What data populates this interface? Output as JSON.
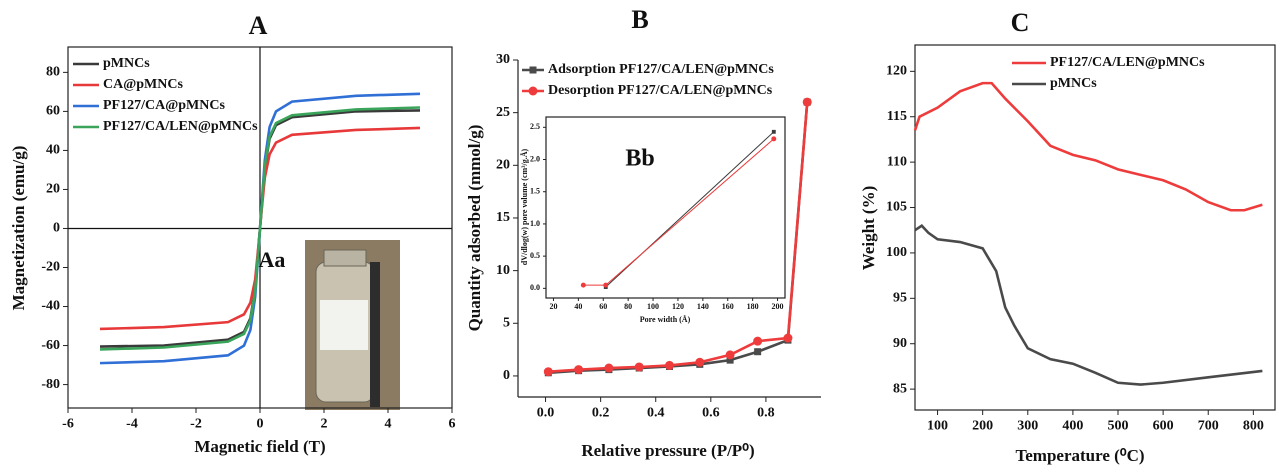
{
  "chart_data": [
    {
      "type": "line",
      "title": "A",
      "x_label": "Magnetic field (T)",
      "y_label": "Magnetization (emu/g)",
      "annotation": "Aa",
      "x": [
        -5,
        -3,
        -1,
        -0.5,
        -0.3,
        -0.15,
        -0.05,
        0,
        0.05,
        0.15,
        0.3,
        0.5,
        1,
        3,
        5
      ],
      "series": [
        {
          "name": "pMNCs",
          "color": "#3a3a3a",
          "values": [
            -60.5,
            -60,
            -57,
            -53,
            -46,
            -31,
            -10,
            0,
            10,
            31,
            46,
            53,
            57,
            60,
            60.5
          ]
        },
        {
          "name": "CA@pMNCs",
          "color": "#e8393a",
          "values": [
            -51.5,
            -50.5,
            -48,
            -44,
            -38,
            -26,
            -9,
            0,
            9,
            26,
            38,
            44,
            48,
            50.5,
            51.5
          ]
        },
        {
          "name": "PF127/CA@pMNCs",
          "color": "#2f6fd6",
          "values": [
            -69,
            -68,
            -65,
            -60,
            -52,
            -35,
            -12,
            0,
            12,
            35,
            52,
            60,
            65,
            68,
            69
          ]
        },
        {
          "name": "PF127/CA/LEN@pMNCs",
          "color": "#3aa55a",
          "values": [
            -62,
            -61,
            -58,
            -54,
            -47,
            -32,
            -11,
            0,
            11,
            32,
            47,
            54,
            58,
            61,
            62
          ]
        }
      ],
      "xlim": [
        -6,
        6
      ],
      "xticks": [
        -6,
        -4,
        -2,
        0,
        2,
        4,
        6
      ],
      "ylim": [
        -92,
        93
      ],
      "yticks": [
        -80,
        -60,
        -40,
        -20,
        0,
        20,
        40,
        60,
        80
      ]
    },
    {
      "type": "line",
      "title": "B",
      "x_label": "Relative pressure (P/P⁰)",
      "y_label": "Quantity adsorbed (mmol/g)",
      "x": [
        0.01,
        0.12,
        0.23,
        0.34,
        0.45,
        0.56,
        0.67,
        0.77,
        0.88,
        0.95
      ],
      "series": [
        {
          "name": "Adsorption PF127/CA/LEN@pMNCs",
          "color": "#4a4a4a",
          "marker": "square",
          "values": [
            0.3,
            0.5,
            0.6,
            0.75,
            0.9,
            1.1,
            1.5,
            2.3,
            3.4,
            26
          ]
        },
        {
          "name": "Desorption PF127/CA/LEN@pMNCs",
          "color": "#ee3b3b",
          "marker": "circle",
          "values": [
            0.4,
            0.6,
            0.75,
            0.85,
            1.0,
            1.3,
            2.0,
            3.3,
            3.6,
            26
          ]
        }
      ],
      "xlim": [
        -0.1,
        1.0
      ],
      "xticks": [
        {
          "value": 0,
          "label": "0.0"
        },
        0.2,
        0.4,
        0.6,
        0.8
      ],
      "ylim": [
        -2,
        30
      ],
      "yticks": [
        0,
        5,
        10,
        15,
        20,
        25,
        30
      ]
    },
    {
      "type": "line",
      "annotation": "Bb",
      "x_label": "Pore width (Å)",
      "y_label": "dV/dlog(w) pore volume (cm³/g.Å)",
      "series": [
        {
          "color": "#3a3a3a",
          "marker": "square",
          "x": [
            62,
            197
          ],
          "values": [
            0.02,
            2.43
          ]
        },
        {
          "color": "#ee3b3b",
          "marker": "circle",
          "x": [
            44,
            62,
            197
          ],
          "values": [
            0.05,
            0.05,
            2.32
          ]
        }
      ],
      "xlim": [
        14,
        206
      ],
      "xticks": [
        20,
        40,
        60,
        80,
        100,
        120,
        140,
        160,
        180,
        200
      ],
      "ylim": [
        -0.15,
        2.66
      ],
      "yticks": [
        {
          "value": 0,
          "label": "0.0"
        },
        0.5,
        {
          "value": 1,
          "label": "1.0"
        },
        1.5,
        {
          "value": 2,
          "label": "2.0"
        },
        2.5
      ]
    },
    {
      "type": "line",
      "title": "C",
      "x_label": "Temperature (⁰C)",
      "y_label": "Weight (%)",
      "series": [
        {
          "name": "PF127/CA/LEN@pMNCs",
          "color": "#ee3b3b",
          "x": [
            50,
            60,
            100,
            150,
            200,
            220,
            250,
            300,
            350,
            400,
            450,
            500,
            550,
            600,
            650,
            700,
            750,
            780,
            820
          ],
          "values": [
            113.5,
            115,
            116,
            117.8,
            118.7,
            118.7,
            117,
            114.5,
            111.8,
            110.8,
            110.2,
            109.2,
            108.6,
            108,
            107,
            105.6,
            104.7,
            104.7,
            105.3
          ]
        },
        {
          "name": "pMNCs",
          "color": "#4a4a4a",
          "x": [
            50,
            65,
            80,
            100,
            150,
            200,
            230,
            250,
            270,
            300,
            350,
            400,
            450,
            500,
            550,
            600,
            700,
            820
          ],
          "values": [
            102.5,
            103,
            102.2,
            101.5,
            101.2,
            100.5,
            98,
            94,
            92,
            89.5,
            88.3,
            87.8,
            86.8,
            85.7,
            85.5,
            85.7,
            86.3,
            87
          ]
        }
      ],
      "xlim": [
        50,
        848
      ],
      "xticks": [
        100,
        200,
        300,
        400,
        500,
        600,
        700,
        800
      ],
      "ylim": [
        82.7,
        122.9
      ],
      "yticks": [
        85,
        90,
        95,
        100,
        105,
        110,
        115,
        120
      ]
    }
  ]
}
